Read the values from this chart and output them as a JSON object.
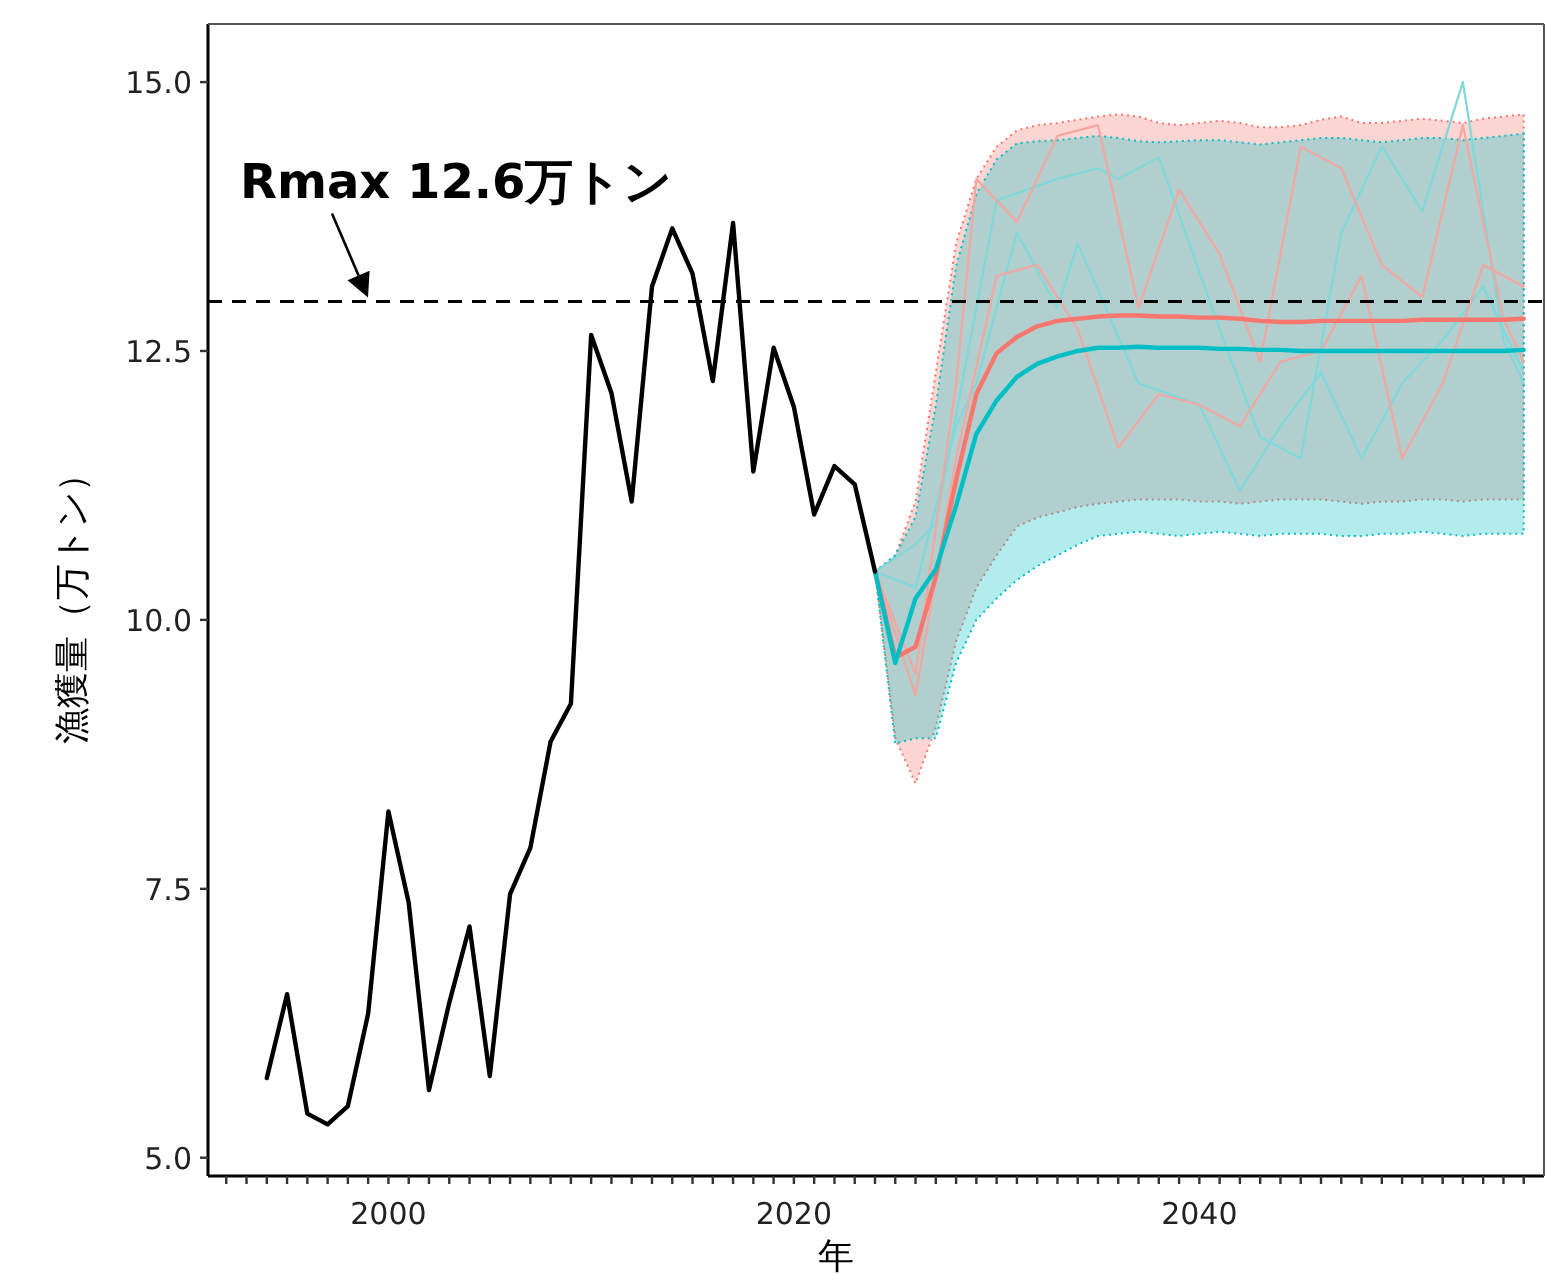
{
  "chart_data": {
    "type": "line",
    "xlabel": "年",
    "ylabel": "漁獲量（万トン）",
    "xlim": [
      1991.1,
      2057
    ],
    "ylim": [
      4.83,
      15.54
    ],
    "xticks": [
      {
        "value": 1992,
        "label": null
      },
      {
        "value": 1993,
        "label": null
      },
      {
        "value": 1994,
        "label": null
      },
      {
        "value": 1995,
        "label": null
      },
      {
        "value": 1996,
        "label": null
      },
      {
        "value": 1997,
        "label": null
      },
      {
        "value": 1998,
        "label": null
      },
      {
        "value": 1999,
        "label": null
      },
      2000,
      {
        "value": 2001,
        "label": null
      },
      {
        "value": 2002,
        "label": null
      },
      {
        "value": 2003,
        "label": null
      },
      {
        "value": 2004,
        "label": null
      },
      {
        "value": 2005,
        "label": null
      },
      {
        "value": 2006,
        "label": null
      },
      {
        "value": 2007,
        "label": null
      },
      {
        "value": 2008,
        "label": null
      },
      {
        "value": 2009,
        "label": null
      },
      {
        "value": 2010,
        "label": null
      },
      {
        "value": 2011,
        "label": null
      },
      {
        "value": 2012,
        "label": null
      },
      {
        "value": 2013,
        "label": null
      },
      {
        "value": 2014,
        "label": null
      },
      {
        "value": 2015,
        "label": null
      },
      {
        "value": 2016,
        "label": null
      },
      {
        "value": 2017,
        "label": null
      },
      {
        "value": 2018,
        "label": null
      },
      {
        "value": 2019,
        "label": null
      },
      2020,
      {
        "value": 2021,
        "label": null
      },
      {
        "value": 2022,
        "label": null
      },
      {
        "value": 2023,
        "label": null
      },
      {
        "value": 2024,
        "label": null
      },
      {
        "value": 2025,
        "label": null
      },
      {
        "value": 2026,
        "label": null
      },
      {
        "value": 2027,
        "label": null
      },
      {
        "value": 2028,
        "label": null
      },
      {
        "value": 2029,
        "label": null
      },
      {
        "value": 2030,
        "label": null
      },
      {
        "value": 2031,
        "label": null
      },
      {
        "value": 2032,
        "label": null
      },
      {
        "value": 2033,
        "label": null
      },
      {
        "value": 2034,
        "label": null
      },
      {
        "value": 2035,
        "label": null
      },
      {
        "value": 2036,
        "label": null
      },
      {
        "value": 2037,
        "label": null
      },
      {
        "value": 2038,
        "label": null
      },
      {
        "value": 2039,
        "label": null
      },
      2040,
      {
        "value": 2041,
        "label": null
      },
      {
        "value": 2042,
        "label": null
      },
      {
        "value": 2043,
        "label": null
      },
      {
        "value": 2044,
        "label": null
      },
      {
        "value": 2045,
        "label": null
      },
      {
        "value": 2046,
        "label": null
      },
      {
        "value": 2047,
        "label": null
      },
      {
        "value": 2048,
        "label": null
      },
      {
        "value": 2049,
        "label": null
      },
      {
        "value": 2050,
        "label": null
      },
      {
        "value": 2051,
        "label": null
      },
      {
        "value": 2052,
        "label": null
      },
      {
        "value": 2053,
        "label": null
      },
      {
        "value": 2054,
        "label": null
      },
      {
        "value": 2055,
        "label": null
      },
      {
        "value": 2056,
        "label": null
      }
    ],
    "yticks": [
      {
        "value": 5,
        "label": "5.0"
      },
      {
        "value": 7.5,
        "label": "7.5"
      },
      {
        "value": 10,
        "label": "10.0"
      },
      {
        "value": 12.5,
        "label": "12.5"
      },
      {
        "value": 15,
        "label": "15.0"
      }
    ],
    "grid": false,
    "ref_lines": [
      {
        "axis": "y",
        "value": 12.96,
        "label": "Rmax 12.6万トン",
        "color": "#000000",
        "line_style": "dashed"
      }
    ],
    "series": [
      {
        "color": "#f8766d",
        "x": [
          2024,
          2025,
          2026,
          2027,
          2028,
          2029,
          2030,
          2031,
          2032,
          2033,
          2034,
          2035,
          2036,
          2037,
          2038,
          2039,
          2040,
          2041,
          2042,
          2043,
          2044,
          2045,
          2046,
          2047,
          2048,
          2049,
          2050,
          2051,
          2052,
          2053,
          2054,
          2055,
          2056
        ],
        "values": [
          10.45,
          9.65,
          9.75,
          10.4,
          11.3,
          12.1,
          12.48,
          12.63,
          12.73,
          12.78,
          12.8,
          12.82,
          12.83,
          12.83,
          12.82,
          12.82,
          12.81,
          12.81,
          12.8,
          12.78,
          12.77,
          12.77,
          12.78,
          12.78,
          12.78,
          12.78,
          12.78,
          12.79,
          12.79,
          12.79,
          12.79,
          12.79,
          12.8
        ],
        "lower": [
          10.45,
          8.9,
          8.48,
          9.0,
          9.8,
          10.3,
          10.6,
          10.87,
          10.95,
          11.0,
          11.05,
          11.08,
          11.1,
          11.12,
          11.12,
          11.12,
          11.1,
          11.1,
          11.08,
          11.1,
          11.12,
          11.12,
          11.12,
          11.1,
          11.08,
          11.1,
          11.1,
          11.12,
          11.12,
          11.1,
          11.12,
          11.12,
          11.12
        ],
        "upper": [
          10.45,
          10.6,
          11.1,
          12.3,
          13.5,
          14.1,
          14.4,
          14.55,
          14.6,
          14.62,
          14.65,
          14.68,
          14.7,
          14.68,
          14.62,
          14.6,
          14.62,
          14.64,
          14.62,
          14.58,
          14.58,
          14.6,
          14.65,
          14.68,
          14.62,
          14.62,
          14.64,
          14.66,
          14.64,
          14.62,
          14.66,
          14.68,
          14.7
        ]
      },
      {
        "color": "#00bfc4",
        "x": [
          2024,
          2025,
          2026,
          2027,
          2028,
          2029,
          2030,
          2031,
          2032,
          2033,
          2034,
          2035,
          2036,
          2037,
          2038,
          2039,
          2040,
          2041,
          2042,
          2043,
          2044,
          2045,
          2046,
          2047,
          2048,
          2049,
          2050,
          2051,
          2052,
          2053,
          2054,
          2055,
          2056
        ],
        "values": [
          10.45,
          9.6,
          10.2,
          10.47,
          11.06,
          11.73,
          12.04,
          12.26,
          12.38,
          12.45,
          12.5,
          12.53,
          12.53,
          12.54,
          12.53,
          12.53,
          12.53,
          12.52,
          12.52,
          12.51,
          12.51,
          12.5,
          12.5,
          12.5,
          12.5,
          12.5,
          12.5,
          12.5,
          12.5,
          12.5,
          12.5,
          12.5,
          12.51
        ],
        "lower": [
          10.45,
          8.85,
          8.9,
          8.9,
          9.6,
          10.0,
          10.2,
          10.37,
          10.5,
          10.6,
          10.7,
          10.78,
          10.8,
          10.82,
          10.8,
          10.78,
          10.8,
          10.82,
          10.8,
          10.78,
          10.8,
          10.8,
          10.8,
          10.78,
          10.78,
          10.8,
          10.8,
          10.82,
          10.8,
          10.78,
          10.8,
          10.8,
          10.8
        ],
        "upper": [
          10.45,
          10.6,
          10.96,
          11.99,
          13.29,
          13.96,
          14.28,
          14.43,
          14.45,
          14.46,
          14.48,
          14.5,
          14.48,
          14.45,
          14.44,
          14.45,
          14.46,
          14.46,
          14.44,
          14.42,
          14.44,
          14.46,
          14.48,
          14.48,
          14.46,
          14.44,
          14.46,
          14.48,
          14.48,
          14.46,
          14.48,
          14.5,
          14.52
        ]
      },
      {
        "color": "#7fd8da",
        "x": [
          2024,
          2026,
          2027,
          2030,
          2033,
          2035,
          2036,
          2038,
          2041,
          2043,
          2045,
          2047,
          2049,
          2051,
          2053,
          2055,
          2056
        ],
        "values": [
          10.45,
          10.7,
          10.9,
          13.9,
          14.1,
          14.2,
          14.1,
          14.3,
          12.7,
          11.7,
          11.5,
          13.6,
          14.4,
          13.8,
          15.0,
          12.6,
          12.2
        ]
      },
      {
        "color": "#7fd8da",
        "x": [
          2024,
          2026,
          2028,
          2029,
          2031,
          2033,
          2034,
          2037,
          2040,
          2042,
          2044,
          2046,
          2048,
          2050,
          2052,
          2054,
          2056
        ],
        "values": [
          10.45,
          10.3,
          11.8,
          12.2,
          13.6,
          12.9,
          13.5,
          12.2,
          12.0,
          11.2,
          11.8,
          12.3,
          11.5,
          12.2,
          12.6,
          13.1,
          12.3
        ]
      },
      {
        "color": "#f4a6a0",
        "x": [
          2024,
          2026,
          2028,
          2029,
          2031,
          2033,
          2035,
          2037,
          2039,
          2041,
          2043,
          2045,
          2047,
          2049,
          2051,
          2053,
          2055,
          2056
        ],
        "values": [
          10.45,
          9.5,
          12.2,
          14.1,
          13.7,
          14.5,
          14.6,
          12.9,
          14.0,
          13.4,
          12.4,
          14.4,
          14.2,
          13.3,
          13.0,
          14.6,
          12.8,
          12.4
        ]
      },
      {
        "color": "#f4a6a0",
        "x": [
          2024,
          2026,
          2028,
          2030,
          2032,
          2034,
          2036,
          2038,
          2040,
          2042,
          2044,
          2046,
          2048,
          2050,
          2052,
          2054,
          2056
        ],
        "values": [
          10.45,
          9.3,
          11.5,
          13.2,
          13.3,
          12.7,
          11.6,
          12.1,
          12.0,
          11.8,
          12.4,
          12.5,
          13.2,
          11.5,
          12.2,
          13.3,
          13.1
        ]
      },
      {
        "color": "#000000",
        "x": [
          1994,
          1995,
          1996,
          1997,
          1998,
          1999,
          2000,
          2001,
          2002,
          2003,
          2004,
          2005,
          2006,
          2007,
          2008,
          2009,
          2010,
          2011,
          2012,
          2013,
          2014,
          2015,
          2016,
          2017,
          2018,
          2019,
          2020,
          2021,
          2022,
          2023,
          2024
        ],
        "values": [
          5.74,
          6.52,
          5.41,
          5.31,
          5.48,
          6.34,
          8.22,
          7.37,
          5.63,
          6.44,
          7.15,
          5.76,
          7.45,
          7.88,
          8.87,
          9.22,
          12.65,
          12.11,
          11.1,
          13.1,
          13.64,
          13.22,
          12.22,
          13.69,
          11.38,
          12.53,
          11.98,
          10.98,
          11.43,
          11.26,
          10.45
        ]
      }
    ]
  }
}
